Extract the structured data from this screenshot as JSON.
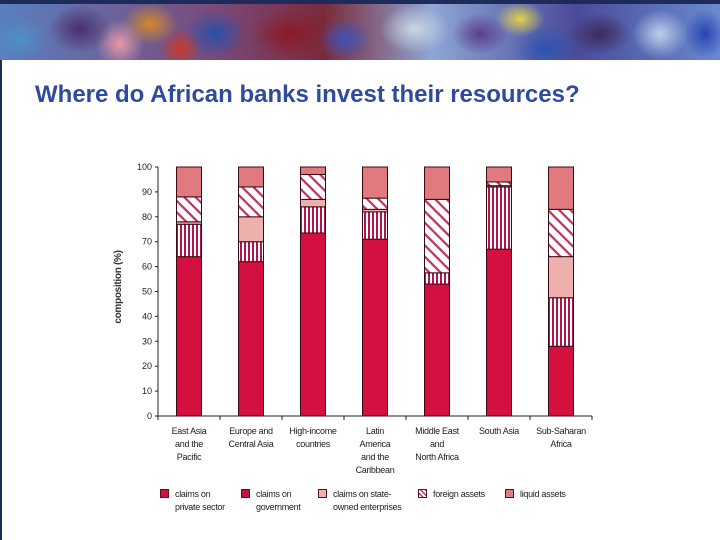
{
  "slide": {
    "title": "Where do African banks invest their resources?"
  },
  "colors": {
    "private_sector": "#d3103f",
    "government_stripe": "#b0154a",
    "state_owned": "#eeb0ad",
    "foreign_hatch": "#c0305a",
    "liquid": "#e07a7e",
    "title": "#2f4ba0",
    "outline": "#3a0a14"
  },
  "chart_data": {
    "type": "bar",
    "stacked": true,
    "title": "",
    "xlabel": "",
    "ylabel": "composition (%)",
    "ylim": [
      0,
      100
    ],
    "yticks": [
      0,
      10,
      20,
      30,
      40,
      50,
      60,
      70,
      80,
      90,
      100
    ],
    "categories": [
      "East Asia and the Pacific",
      "Europe and Central Asia",
      "High-income countries",
      "Latin America and the Caribbean",
      "Middle East and North Africa",
      "South Asia",
      "Sub-Saharan Africa"
    ],
    "category_lines": [
      [
        "East Asia",
        "and the",
        "Pacific"
      ],
      [
        "Europe and",
        "Central Asia"
      ],
      [
        "High-income",
        "countries"
      ],
      [
        "Latin",
        "America",
        "and the",
        "Caribbean"
      ],
      [
        "Middle East",
        "and",
        "North Africa"
      ],
      [
        "South Asia"
      ],
      [
        "Sub-Saharan",
        "Africa"
      ]
    ],
    "series": [
      {
        "name": "claims on private sector",
        "values": [
          64,
          62,
          73.5,
          71,
          53,
          67,
          28
        ]
      },
      {
        "name": "claims on government",
        "values": [
          13,
          8,
          10.5,
          11,
          4.5,
          25,
          19.5
        ]
      },
      {
        "name": "claims on state-owned enterprises",
        "values": [
          1,
          10,
          3,
          1,
          0,
          0.5,
          16.5
        ]
      },
      {
        "name": "foreign assets",
        "values": [
          10,
          12,
          10,
          4.5,
          29.5,
          1.5,
          19
        ]
      },
      {
        "name": "liquid assets",
        "values": [
          12,
          8,
          3,
          12.5,
          13,
          6,
          17
        ]
      }
    ],
    "legend": {
      "position": "bottom",
      "entries": [
        {
          "lines": [
            "claims on",
            "private sector"
          ]
        },
        {
          "lines": [
            "claims on",
            "government"
          ]
        },
        {
          "lines": [
            "claims on state-",
            "owned enterprises"
          ]
        },
        {
          "lines": [
            "foreign assets"
          ]
        },
        {
          "lines": [
            "liquid assets"
          ]
        }
      ]
    },
    "grid": false
  }
}
